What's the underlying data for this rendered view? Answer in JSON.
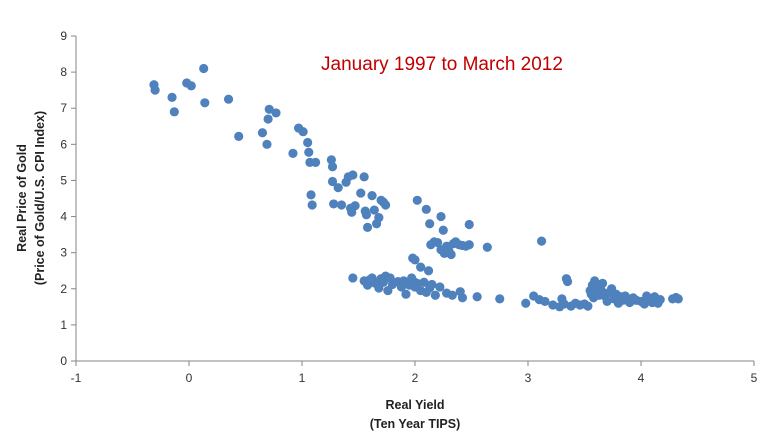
{
  "chart_data": {
    "type": "scatter",
    "title": "January 1997 to March 2012",
    "xlabel": [
      "Real Yield",
      "(Ten Year TIPS)"
    ],
    "ylabel": [
      "Real Price of Gold",
      "(Price of Gold/U.S. CPI Index)"
    ],
    "xlim": [
      -1,
      5
    ],
    "ylim": [
      0,
      9
    ],
    "x_ticks": [
      "-1",
      "0",
      "1",
      "2",
      "3",
      "4",
      "5"
    ],
    "y_ticks": [
      "0",
      "1",
      "2",
      "3",
      "4",
      "5",
      "6",
      "7",
      "8",
      "9"
    ],
    "grid": false,
    "legend": "none",
    "marker_color": "#4f81bd",
    "title_color": "#c00000",
    "points": [
      [
        -0.31,
        7.65
      ],
      [
        -0.3,
        7.5
      ],
      [
        -0.15,
        7.3
      ],
      [
        -0.13,
        6.9
      ],
      [
        -0.02,
        7.7
      ],
      [
        0.02,
        7.62
      ],
      [
        0.13,
        8.1
      ],
      [
        0.14,
        7.15
      ],
      [
        0.35,
        7.25
      ],
      [
        0.44,
        6.22
      ],
      [
        0.65,
        6.32
      ],
      [
        0.69,
        6.0
      ],
      [
        0.7,
        6.7
      ],
      [
        0.71,
        6.97
      ],
      [
        0.77,
        6.87
      ],
      [
        0.92,
        5.75
      ],
      [
        0.97,
        6.45
      ],
      [
        1.01,
        6.35
      ],
      [
        1.05,
        6.05
      ],
      [
        1.06,
        5.78
      ],
      [
        1.07,
        5.5
      ],
      [
        1.08,
        4.6
      ],
      [
        1.09,
        4.32
      ],
      [
        1.12,
        5.5
      ],
      [
        1.26,
        5.57
      ],
      [
        1.27,
        5.38
      ],
      [
        1.27,
        4.97
      ],
      [
        1.28,
        4.35
      ],
      [
        1.32,
        4.8
      ],
      [
        1.35,
        4.32
      ],
      [
        1.39,
        4.95
      ],
      [
        1.41,
        5.1
      ],
      [
        1.43,
        4.23
      ],
      [
        1.44,
        4.12
      ],
      [
        1.45,
        5.15
      ],
      [
        1.47,
        4.3
      ],
      [
        1.52,
        4.65
      ],
      [
        1.55,
        5.1
      ],
      [
        1.56,
        4.15
      ],
      [
        1.57,
        4.05
      ],
      [
        1.58,
        3.7
      ],
      [
        1.62,
        4.58
      ],
      [
        1.64,
        4.18
      ],
      [
        1.66,
        3.8
      ],
      [
        1.68,
        3.97
      ],
      [
        1.7,
        4.45
      ],
      [
        1.72,
        4.4
      ],
      [
        1.74,
        4.32
      ],
      [
        2.02,
        4.45
      ],
      [
        2.1,
        4.2
      ],
      [
        2.13,
        3.8
      ],
      [
        2.23,
        4.0
      ],
      [
        2.25,
        3.62
      ],
      [
        2.48,
        3.78
      ],
      [
        2.14,
        3.22
      ],
      [
        2.17,
        3.3
      ],
      [
        2.2,
        3.28
      ],
      [
        2.23,
        3.08
      ],
      [
        2.26,
        2.98
      ],
      [
        2.28,
        3.18
      ],
      [
        2.3,
        3.05
      ],
      [
        2.32,
        2.95
      ],
      [
        2.34,
        3.25
      ],
      [
        2.36,
        3.3
      ],
      [
        2.39,
        3.22
      ],
      [
        2.42,
        3.2
      ],
      [
        2.45,
        3.18
      ],
      [
        2.48,
        3.22
      ],
      [
        2.64,
        3.15
      ],
      [
        1.98,
        2.85
      ],
      [
        2.0,
        2.8
      ],
      [
        2.05,
        2.6
      ],
      [
        2.12,
        2.5
      ],
      [
        3.12,
        3.32
      ],
      [
        1.45,
        2.3
      ],
      [
        1.55,
        2.22
      ],
      [
        1.58,
        2.1
      ],
      [
        1.6,
        2.25
      ],
      [
        1.62,
        2.3
      ],
      [
        1.65,
        2.15
      ],
      [
        1.68,
        2.02
      ],
      [
        1.7,
        2.28
      ],
      [
        1.72,
        2.18
      ],
      [
        1.74,
        2.35
      ],
      [
        1.76,
        1.95
      ],
      [
        1.78,
        2.3
      ],
      [
        1.8,
        2.12
      ],
      [
        1.85,
        2.2
      ],
      [
        1.88,
        2.05
      ],
      [
        1.9,
        2.22
      ],
      [
        1.92,
        1.85
      ],
      [
        1.95,
        2.1
      ],
      [
        1.97,
        2.3
      ],
      [
        1.99,
        2.2
      ],
      [
        2.0,
        2.05
      ],
      [
        2.02,
        2.15
      ],
      [
        2.05,
        1.95
      ],
      [
        2.08,
        2.18
      ],
      [
        2.1,
        1.9
      ],
      [
        2.13,
        2.02
      ],
      [
        2.15,
        2.12
      ],
      [
        2.18,
        1.82
      ],
      [
        2.22,
        2.05
      ],
      [
        2.28,
        1.88
      ],
      [
        2.33,
        1.82
      ],
      [
        2.4,
        1.92
      ],
      [
        2.42,
        1.75
      ],
      [
        2.55,
        1.78
      ],
      [
        2.75,
        1.72
      ],
      [
        2.98,
        1.6
      ],
      [
        3.05,
        1.8
      ],
      [
        3.1,
        1.7
      ],
      [
        3.15,
        1.65
      ],
      [
        3.22,
        1.55
      ],
      [
        3.28,
        1.5
      ],
      [
        3.3,
        1.72
      ],
      [
        3.32,
        1.58
      ],
      [
        3.34,
        2.28
      ],
      [
        3.35,
        2.2
      ],
      [
        3.38,
        1.52
      ],
      [
        3.42,
        1.6
      ],
      [
        3.46,
        1.55
      ],
      [
        3.5,
        1.58
      ],
      [
        3.53,
        1.52
      ],
      [
        3.55,
        1.95
      ],
      [
        3.56,
        1.85
      ],
      [
        3.57,
        2.1
      ],
      [
        3.58,
        1.75
      ],
      [
        3.59,
        2.22
      ],
      [
        3.6,
        1.9
      ],
      [
        3.62,
        2.05
      ],
      [
        3.63,
        1.82
      ],
      [
        3.65,
        1.95
      ],
      [
        3.66,
        2.15
      ],
      [
        3.68,
        1.8
      ],
      [
        3.7,
        1.65
      ],
      [
        3.72,
        1.9
      ],
      [
        3.74,
        2.0
      ],
      [
        3.76,
        1.72
      ],
      [
        3.78,
        1.85
      ],
      [
        3.8,
        1.6
      ],
      [
        3.82,
        1.78
      ],
      [
        3.84,
        1.68
      ],
      [
        3.86,
        1.8
      ],
      [
        3.88,
        1.72
      ],
      [
        3.9,
        1.62
      ],
      [
        3.93,
        1.75
      ],
      [
        3.96,
        1.68
      ],
      [
        4.0,
        1.65
      ],
      [
        4.03,
        1.58
      ],
      [
        4.05,
        1.8
      ],
      [
        4.08,
        1.72
      ],
      [
        4.1,
        1.62
      ],
      [
        4.12,
        1.78
      ],
      [
        4.15,
        1.6
      ],
      [
        4.17,
        1.7
      ],
      [
        4.28,
        1.72
      ],
      [
        4.31,
        1.76
      ],
      [
        4.33,
        1.72
      ]
    ]
  }
}
